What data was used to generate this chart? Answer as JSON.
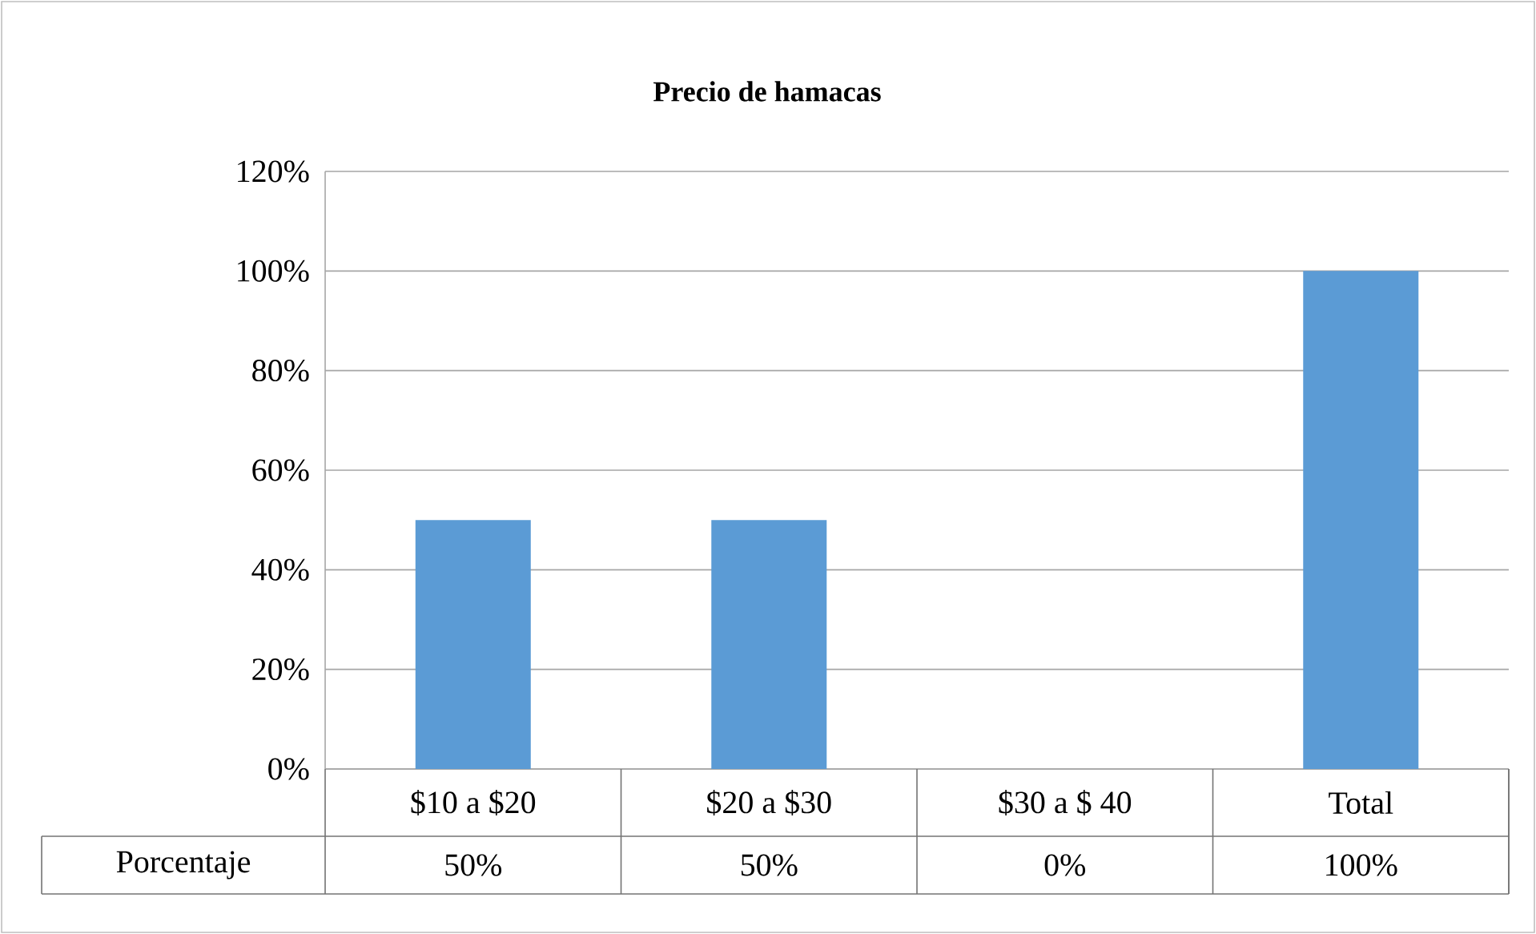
{
  "chart_data": {
    "type": "bar",
    "title": "Precio de hamacas",
    "categories": [
      "$10 a $20",
      "$20 a $30",
      "$30 a $ 40",
      "Total"
    ],
    "series": [
      {
        "name": "Porcentaje",
        "color": "#5b9bd5",
        "values": [
          50,
          50,
          0,
          100
        ],
        "value_labels": [
          "50%",
          "50%",
          "0%",
          "100%"
        ]
      }
    ],
    "ylim": [
      0,
      120
    ],
    "yticks": [
      {
        "value": 0,
        "label": "0%"
      },
      {
        "value": 20,
        "label": "20%"
      },
      {
        "value": 40,
        "label": "40%"
      },
      {
        "value": 60,
        "label": "60%"
      },
      {
        "value": 80,
        "label": "80%"
      },
      {
        "value": 100,
        "label": "100%"
      },
      {
        "value": 120,
        "label": "120%"
      }
    ],
    "grid": "y"
  }
}
